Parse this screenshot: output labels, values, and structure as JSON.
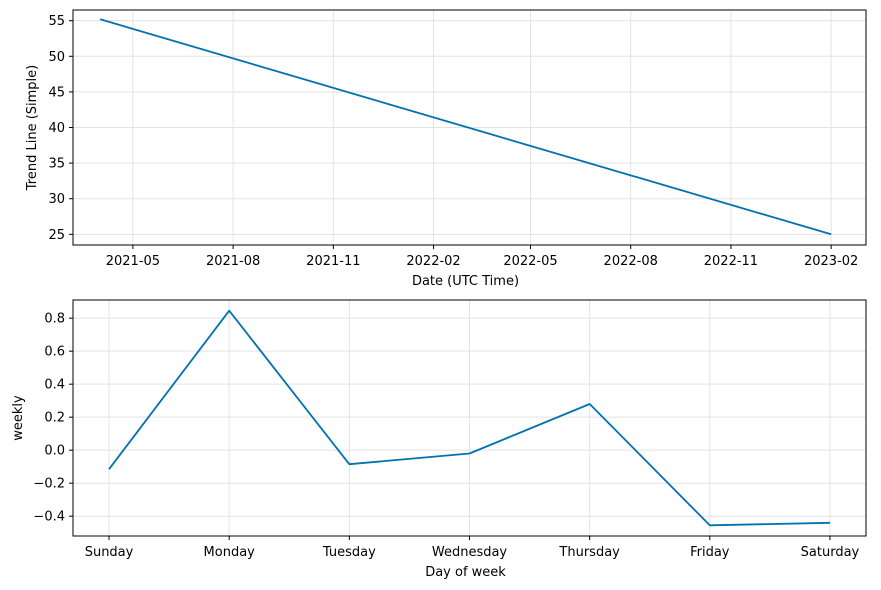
{
  "colors": {
    "line": "#0072B2",
    "grid": "#e3e3e3",
    "axes": "#000000",
    "background": "#ffffff"
  },
  "chart_data": [
    {
      "type": "line",
      "xlabel": "Date (UTC Time)",
      "ylabel": "Trend Line (Simple)",
      "grid": true,
      "x_type": "date",
      "xlim": [
        "2021-03-07",
        "2023-03-05"
      ],
      "ylim": [
        23.5,
        56.5
      ],
      "xticks": [
        {
          "value": "2021-05-01",
          "label": "2021-05"
        },
        {
          "value": "2021-08-01",
          "label": "2021-08"
        },
        {
          "value": "2021-11-01",
          "label": "2021-11"
        },
        {
          "value": "2022-02-01",
          "label": "2022-02"
        },
        {
          "value": "2022-05-01",
          "label": "2022-05"
        },
        {
          "value": "2022-08-01",
          "label": "2022-08"
        },
        {
          "value": "2022-11-01",
          "label": "2022-11"
        },
        {
          "value": "2023-02-01",
          "label": "2023-02"
        }
      ],
      "yticks": [
        25,
        30,
        35,
        40,
        45,
        50,
        55
      ],
      "series": [
        {
          "x": [
            "2021-04-01",
            "2023-02-01"
          ],
          "y": [
            55.2,
            25.0
          ]
        }
      ]
    },
    {
      "type": "line",
      "xlabel": "Day of week",
      "ylabel": "weekly",
      "grid": true,
      "x_type": "category",
      "categories": [
        "Sunday",
        "Monday",
        "Tuesday",
        "Wednesday",
        "Thursday",
        "Friday",
        "Saturday"
      ],
      "ylim": [
        -0.52,
        0.91
      ],
      "yticks": [
        -0.4,
        -0.2,
        0.0,
        0.2,
        0.4,
        0.6,
        0.8
      ],
      "ytick_labels": [
        "−0.4",
        "−0.2",
        "0.0",
        "0.2",
        "0.4",
        "0.6",
        "0.8"
      ],
      "series": [
        {
          "values": [
            -0.115,
            0.845,
            -0.085,
            -0.02,
            0.28,
            -0.455,
            -0.44
          ]
        }
      ]
    }
  ]
}
